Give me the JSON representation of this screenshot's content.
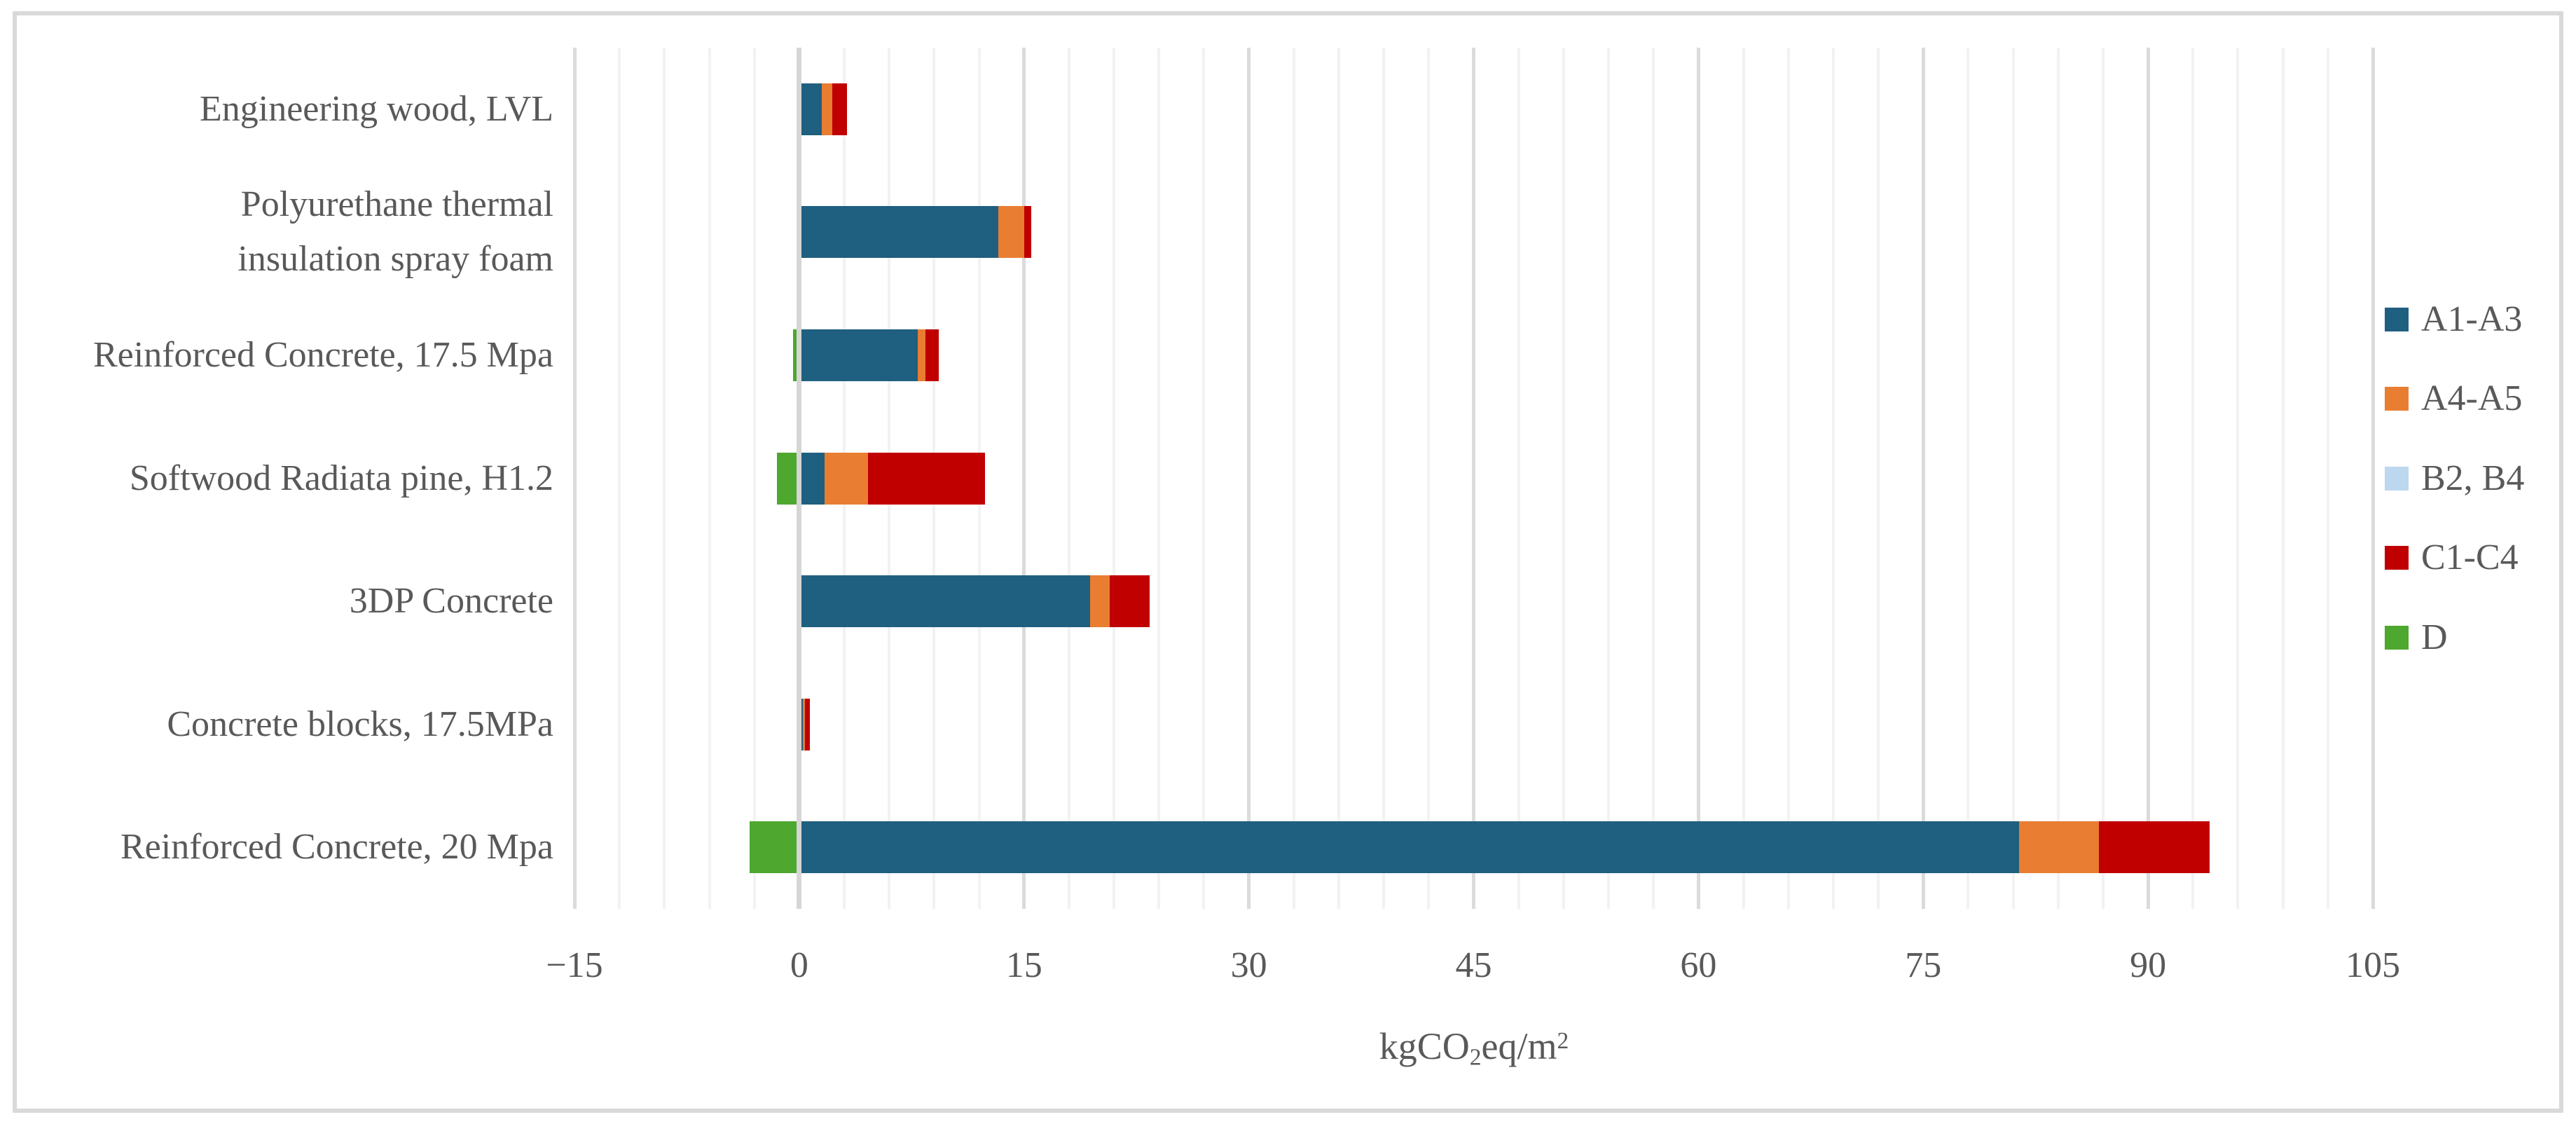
{
  "styles": {
    "background": "#FFFFFF",
    "border_color": "#D9D9D9",
    "grid_major_color": "#DBDBDB",
    "grid_minor_color": "#F2F2F2",
    "zero_line_color": "#D6D6D6",
    "text_color": "#595959"
  },
  "chart_data": {
    "type": "bar",
    "orientation": "horizontal",
    "stacked": true,
    "title": "",
    "xlabel": "kgCO2eq/m2",
    "xlabel_parts": {
      "pre": "kgCO",
      "sub": "2",
      "mid": "eq/m",
      "sup": "2"
    },
    "ylabel": "",
    "grid": true,
    "legend_position": "right",
    "categories": [
      {
        "lines": [
          "Engineering wood, LVL"
        ]
      },
      {
        "lines": [
          "Polyurethane thermal",
          "insulation spray foam"
        ]
      },
      {
        "lines": [
          "Reinforced Concrete, 17.5 Mpa"
        ]
      },
      {
        "lines": [
          "Softwood Radiata pine, H1.2"
        ]
      },
      {
        "lines": [
          "3DP Concrete"
        ]
      },
      {
        "lines": [
          "Concrete blocks, 17.5MPa"
        ]
      },
      {
        "lines": [
          "Reinforced Concrete, 20 Mpa"
        ]
      }
    ],
    "series": [
      {
        "name": "A1-A3",
        "color": "#1F5F7F",
        "values": [
          1.5,
          13.3,
          7.9,
          1.7,
          19.4,
          0.25,
          81.4
        ]
      },
      {
        "name": "A4-A5",
        "color": "#E97D31",
        "values": [
          0.7,
          1.7,
          0.5,
          2.9,
          1.3,
          0.15,
          5.3
        ]
      },
      {
        "name": "B2, B4",
        "color": "#BDD7EE",
        "values": [
          0,
          0,
          0,
          0,
          0,
          0,
          0
        ]
      },
      {
        "name": "C1-C4",
        "color": "#C00000",
        "values": [
          1.0,
          0.5,
          0.9,
          7.8,
          2.7,
          0.3,
          7.4
        ]
      },
      {
        "name": "D",
        "color": "#4EA72E",
        "values": [
          -0.2,
          0,
          -0.4,
          -1.5,
          -0.2,
          -0.2,
          -3.3
        ]
      }
    ],
    "x_axis": {
      "min": -15,
      "max": 105,
      "major_unit": 15,
      "minor_unit": 3,
      "tick_values": [
        -15,
        0,
        15,
        30,
        45,
        60,
        75,
        90,
        105
      ],
      "tick_labels": [
        "−15",
        "0",
        "15",
        "30",
        "45",
        "60",
        "75",
        "90",
        "105"
      ]
    },
    "legend": {
      "items": [
        "A1-A3",
        "A4-A5",
        "B2, B4",
        "C1-C4",
        "D"
      ]
    }
  }
}
